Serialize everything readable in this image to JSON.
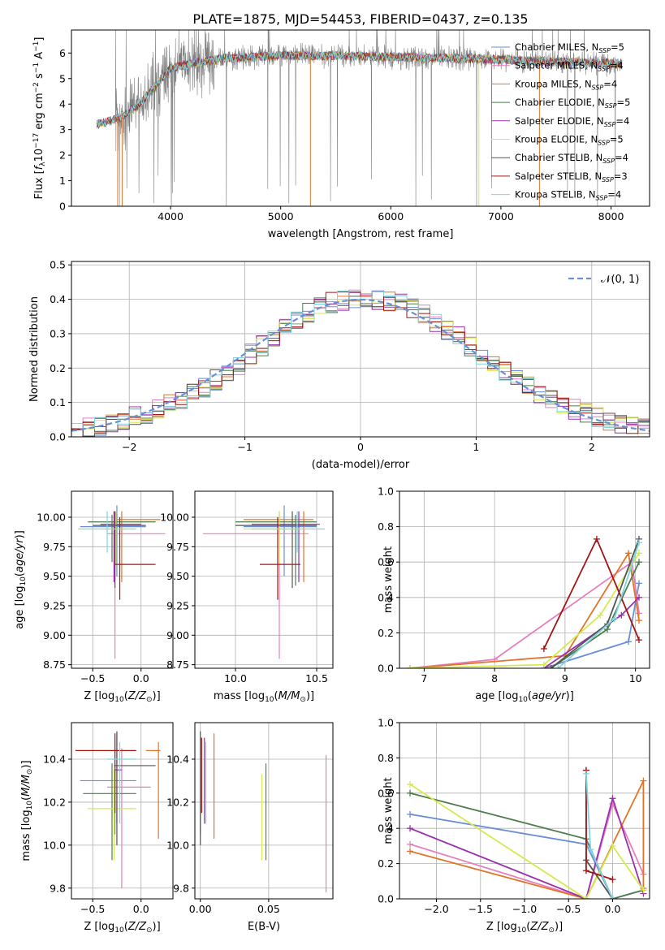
{
  "title": "PLATE=1875, MJD=54453, FIBERID=0437, z=0.135",
  "series_styles": [
    {
      "name": "Chabrier MILES",
      "nssp": "5",
      "color": "#6a8fd6"
    },
    {
      "name": "Salpeter MILES",
      "nssp": "4",
      "color": "#e67fbd"
    },
    {
      "name": "Kroupa MILES",
      "nssp": "4",
      "color": "#e0752a"
    },
    {
      "name": "Chabrier ELODIE",
      "nssp": "5",
      "color": "#4f7d4f"
    },
    {
      "name": "Salpeter ELODIE",
      "nssp": "4",
      "color": "#9b30b0"
    },
    {
      "name": "Kroupa ELODIE",
      "nssp": "5",
      "color": "#d8e850"
    },
    {
      "name": "Chabrier STELIB",
      "nssp": "4",
      "color": "#555555"
    },
    {
      "name": "Salpeter STELIB",
      "nssp": "3",
      "color": "#a31515"
    },
    {
      "name": "Kroupa STELIB",
      "nssp": "4",
      "color": "#7fd6de"
    }
  ],
  "chart_data": [
    {
      "id": "spectrum",
      "type": "line",
      "xlabel": "wavelength [Angstrom, rest frame]",
      "ylabel": "Flux [f_λ10^-17 erg cm^-2 s^-1 A^-1]",
      "xlim": [
        3100,
        8350
      ],
      "ylim": [
        0,
        6.9
      ],
      "xticks": [
        4000,
        5000,
        6000,
        7000,
        8000
      ],
      "yticks": [
        0,
        1,
        2,
        3,
        4,
        5,
        6
      ],
      "grid": false,
      "legend": "top-right",
      "continuum": {
        "x": [
          3330,
          3500,
          3700,
          3900,
          4000,
          4200,
          4500,
          5000,
          5500,
          6000,
          6500,
          7000,
          7500,
          8000,
          8100
        ],
        "y": [
          3.2,
          3.4,
          3.9,
          4.9,
          5.4,
          5.6,
          5.8,
          5.9,
          5.9,
          5.85,
          5.8,
          5.75,
          5.65,
          5.6,
          5.55
        ]
      }
    },
    {
      "id": "hist",
      "type": "bar",
      "xlabel": "(data-model)/error",
      "ylabel": "Normed distribution",
      "xlim": [
        -2.5,
        2.5
      ],
      "ylim": [
        0,
        0.51
      ],
      "xticks": [
        -2,
        -1,
        0,
        1,
        2
      ],
      "yticks": [
        0.0,
        0.1,
        0.2,
        0.3,
        0.4,
        0.5
      ],
      "grid": true,
      "legend": "top-right",
      "legend_label": "𝒩(0, 1)",
      "bin_edges": [
        -2.5,
        -2.4,
        -2.3,
        -2.2,
        -2.1,
        -2.0,
        -1.9,
        -1.8,
        -1.7,
        -1.6,
        -1.5,
        -1.4,
        -1.3,
        -1.2,
        -1.1,
        -1.0,
        -0.9,
        -0.8,
        -0.7,
        -0.6,
        -0.5,
        -0.4,
        -0.3,
        -0.2,
        -0.1,
        0.0,
        0.1,
        0.2,
        0.3,
        0.4,
        0.5,
        0.6,
        0.7,
        0.8,
        0.9,
        1.0,
        1.1,
        1.2,
        1.3,
        1.4,
        1.5,
        1.6,
        1.7,
        1.8,
        1.9,
        2.0,
        2.1,
        2.2,
        2.3,
        2.4,
        2.5
      ],
      "base_counts": [
        0.018,
        0.025,
        0.032,
        0.04,
        0.048,
        0.058,
        0.068,
        0.08,
        0.095,
        0.11,
        0.128,
        0.145,
        0.165,
        0.188,
        0.21,
        0.24,
        0.265,
        0.29,
        0.315,
        0.34,
        0.36,
        0.38,
        0.39,
        0.395,
        0.4,
        0.405,
        0.4,
        0.392,
        0.385,
        0.372,
        0.355,
        0.335,
        0.312,
        0.29,
        0.265,
        0.24,
        0.215,
        0.19,
        0.168,
        0.147,
        0.128,
        0.11,
        0.095,
        0.08,
        0.068,
        0.058,
        0.048,
        0.04,
        0.033,
        0.025
      ]
    },
    {
      "id": "age_z",
      "type": "scatter",
      "xlabel": "Z [log10(Z/Z⊙)]",
      "ylabel": "age  [log10(age/yr)]",
      "xlim": [
        -0.72,
        0.33
      ],
      "ylim": [
        8.72,
        10.22
      ],
      "xticks": [
        -0.5,
        0.0
      ],
      "yticks": [
        8.75,
        9.0,
        9.25,
        9.5,
        9.75,
        10.0
      ],
      "grid": true,
      "points": [
        {
          "s": 0,
          "x": -0.25,
          "xe": [
            -0.63,
            0.05
          ],
          "y": 9.92,
          "ye": [
            9.5,
            10.1
          ]
        },
        {
          "s": 1,
          "x": -0.27,
          "xe": [
            -0.35,
            0.25
          ],
          "y": 9.86,
          "ye": [
            8.8,
            10.05
          ]
        },
        {
          "s": 2,
          "x": -0.2,
          "xe": [
            -0.25,
            0.2
          ],
          "y": 9.98,
          "ye": [
            9.45,
            10.05
          ]
        },
        {
          "s": 3,
          "x": -0.3,
          "xe": [
            -0.55,
            0.15
          ],
          "y": 9.96,
          "ye": [
            9.62,
            10.02
          ]
        },
        {
          "s": 4,
          "x": -0.28,
          "xe": [
            -0.42,
            0.0
          ],
          "y": 9.94,
          "ye": [
            9.45,
            10.05
          ]
        },
        {
          "s": 5,
          "x": -0.26,
          "xe": [
            -0.4,
            -0.15
          ],
          "y": 9.9,
          "ye": [
            9.6,
            10.05
          ]
        },
        {
          "s": 6,
          "x": -0.27,
          "xe": [
            -0.5,
            0.05
          ],
          "y": 9.93,
          "ye": [
            9.4,
            10.05
          ]
        },
        {
          "s": 7,
          "x": -0.22,
          "xe": [
            -0.27,
            0.15
          ],
          "y": 9.6,
          "ye": [
            9.3,
            10.0
          ]
        },
        {
          "s": 8,
          "x": -0.35,
          "xe": [
            -0.65,
            -0.05
          ],
          "y": 9.9,
          "ye": [
            9.7,
            10.05
          ]
        }
      ]
    },
    {
      "id": "age_mass",
      "type": "scatter",
      "xlabel": "mass [log10(M/M⊙)]",
      "ylabel": "",
      "xlim": [
        9.75,
        10.6
      ],
      "ylim": [
        8.72,
        10.22
      ],
      "xticks": [
        10.0,
        10.5
      ],
      "yticks": [
        8.75,
        9.0,
        9.25,
        9.5,
        9.75,
        10.0
      ],
      "grid": true,
      "points": [
        {
          "s": 0,
          "x": 10.3,
          "xe": [
            10.05,
            10.5
          ],
          "y": 9.92,
          "ye": [
            9.5,
            10.1
          ]
        },
        {
          "s": 1,
          "x": 10.27,
          "xe": [
            9.8,
            10.45
          ],
          "y": 9.86,
          "ye": [
            8.8,
            10.05
          ]
        },
        {
          "s": 2,
          "x": 10.42,
          "xe": [
            10.05,
            10.48
          ],
          "y": 9.98,
          "ye": [
            9.45,
            10.05
          ]
        },
        {
          "s": 3,
          "x": 10.37,
          "xe": [
            10.0,
            10.5
          ],
          "y": 9.96,
          "ye": [
            9.42,
            10.02
          ]
        },
        {
          "s": 4,
          "x": 10.39,
          "xe": [
            10.1,
            10.52
          ],
          "y": 9.94,
          "ye": [
            9.45,
            10.05
          ]
        },
        {
          "s": 5,
          "x": 10.27,
          "xe": [
            10.05,
            10.4
          ],
          "y": 9.9,
          "ye": [
            9.6,
            10.05
          ]
        },
        {
          "s": 6,
          "x": 10.35,
          "xe": [
            10.0,
            10.5
          ],
          "y": 9.93,
          "ye": [
            9.4,
            10.05
          ]
        },
        {
          "s": 7,
          "x": 10.26,
          "xe": [
            10.15,
            10.4
          ],
          "y": 9.6,
          "ye": [
            9.3,
            10.0
          ]
        },
        {
          "s": 8,
          "x": 10.38,
          "xe": [
            10.1,
            10.55
          ],
          "y": 9.9,
          "ye": [
            9.7,
            10.05
          ]
        }
      ]
    },
    {
      "id": "weight_age",
      "type": "line",
      "xlabel": "age  [log10(age/yr)]",
      "ylabel": "mass weight",
      "xlim": [
        6.65,
        10.2
      ],
      "ylim": [
        0,
        1.0
      ],
      "xticks": [
        7,
        8,
        9,
        10
      ],
      "yticks": [
        0.0,
        0.2,
        0.4,
        0.6,
        0.8,
        1.0
      ],
      "grid": true,
      "lines": [
        {
          "s": 0,
          "x": [
            8.7,
            9.9,
            10.05
          ],
          "y": [
            0.0,
            0.15,
            0.48
          ]
        },
        {
          "s": 1,
          "x": [
            6.8,
            8.0,
            9.95,
            10.05
          ],
          "y": [
            0.0,
            0.05,
            0.6,
            0.31
          ]
        },
        {
          "s": 2,
          "x": [
            6.8,
            9.0,
            9.9,
            10.05
          ],
          "y": [
            0.0,
            0.07,
            0.65,
            0.27
          ]
        },
        {
          "s": 3,
          "x": [
            8.8,
            9.6,
            10.05
          ],
          "y": [
            0.0,
            0.22,
            0.6
          ]
        },
        {
          "s": 4,
          "x": [
            8.7,
            9.8,
            10.05
          ],
          "y": [
            0.0,
            0.3,
            0.4
          ]
        },
        {
          "s": 5,
          "x": [
            6.8,
            8.7,
            9.5,
            10.05
          ],
          "y": [
            0.0,
            0.02,
            0.3,
            0.65
          ]
        },
        {
          "s": 6,
          "x": [
            8.8,
            9.6,
            10.05
          ],
          "y": [
            0.0,
            0.25,
            0.73
          ]
        },
        {
          "s": 7,
          "x": [
            8.7,
            9.45,
            10.05
          ],
          "y": [
            0.11,
            0.73,
            0.16
          ]
        },
        {
          "s": 8,
          "x": [
            8.9,
            9.7,
            10.05
          ],
          "y": [
            0.0,
            0.28,
            0.71
          ]
        }
      ]
    },
    {
      "id": "mass_z",
      "type": "scatter",
      "xlabel": "Z [log10(Z/Z⊙)]",
      "ylabel": "mass [log10(M/M⊙)]",
      "xlim": [
        -0.72,
        0.33
      ],
      "ylim": [
        9.75,
        10.57
      ],
      "xticks": [
        -0.5,
        0.0
      ],
      "yticks": [
        9.8,
        10.0,
        10.2,
        10.4
      ],
      "grid": true,
      "points": [
        {
          "s": 0,
          "x": -0.27,
          "xe": [
            -0.63,
            -0.05
          ],
          "y": 10.3,
          "ye": [
            10.05,
            10.5
          ]
        },
        {
          "s": 1,
          "x": -0.2,
          "xe": [
            -0.35,
            0.1
          ],
          "y": 10.27,
          "ye": [
            9.8,
            10.45
          ]
        },
        {
          "s": 2,
          "x": 0.18,
          "xe": [
            0.05,
            0.2
          ],
          "y": 10.44,
          "ye": [
            10.03,
            10.48
          ]
        },
        {
          "s": 3,
          "x": -0.3,
          "xe": [
            -0.6,
            -0.05
          ],
          "y": 10.24,
          "ye": [
            9.93,
            10.38
          ]
        },
        {
          "s": 4,
          "x": -0.25,
          "xe": [
            -0.28,
            -0.2
          ],
          "y": 10.35,
          "ye": [
            10.1,
            10.52
          ]
        },
        {
          "s": 5,
          "x": -0.28,
          "xe": [
            -0.55,
            -0.05
          ],
          "y": 10.17,
          "ye": [
            9.93,
            10.35
          ]
        },
        {
          "s": 6,
          "x": -0.25,
          "xe": [
            -0.28,
            0.15
          ],
          "y": 10.37,
          "ye": [
            10.0,
            10.53
          ]
        },
        {
          "s": 7,
          "x": -0.27,
          "xe": [
            -0.68,
            -0.05
          ],
          "y": 10.44,
          "ye": [
            10.15,
            10.52
          ]
        },
        {
          "s": 8,
          "x": -0.22,
          "xe": [
            -0.35,
            -0.05
          ],
          "y": 10.4,
          "ye": [
            10.1,
            10.48
          ]
        }
      ]
    },
    {
      "id": "mass_ebv",
      "type": "scatter",
      "xlabel": "E(B-V)",
      "ylabel": "",
      "xlim": [
        -0.004,
        0.097
      ],
      "ylim": [
        9.75,
        10.57
      ],
      "xticks": [
        0.0,
        0.05
      ],
      "yticks": [
        9.8,
        10.0,
        10.2,
        10.4
      ],
      "grid": true,
      "points": [
        {
          "s": 0,
          "x": 0.0,
          "y": 10.3,
          "ye": [
            10.05,
            10.5
          ]
        },
        {
          "s": 1,
          "x": 0.092,
          "y": 10.27,
          "ye": [
            9.78,
            10.42
          ]
        },
        {
          "s": 2,
          "x": 0.01,
          "y": 10.44,
          "ye": [
            10.03,
            10.52
          ]
        },
        {
          "s": 3,
          "x": 0.048,
          "y": 10.24,
          "ye": [
            9.93,
            10.38
          ]
        },
        {
          "s": 4,
          "x": 0.003,
          "y": 10.35,
          "ye": [
            10.1,
            10.5
          ]
        },
        {
          "s": 5,
          "x": 0.045,
          "y": 10.17,
          "ye": [
            9.93,
            10.33
          ]
        },
        {
          "s": 6,
          "x": 0.0,
          "y": 10.37,
          "ye": [
            10.0,
            10.53
          ]
        },
        {
          "s": 7,
          "x": 0.001,
          "y": 10.44,
          "ye": [
            10.15,
            10.5
          ]
        },
        {
          "s": 8,
          "x": 0.004,
          "y": 10.4,
          "ye": [
            10.1,
            10.48
          ]
        }
      ]
    },
    {
      "id": "weight_z",
      "type": "line",
      "xlabel": "Z [log10(Z/Z⊙)]",
      "ylabel": "mass weight",
      "xlim": [
        -2.42,
        0.42
      ],
      "ylim": [
        0,
        1.0
      ],
      "xticks": [
        -2.0,
        -1.5,
        -1.0,
        -0.5,
        0.0
      ],
      "yticks": [
        0.0,
        0.2,
        0.4,
        0.6,
        0.8,
        1.0
      ],
      "grid": true,
      "lines": [
        {
          "s": 0,
          "x": [
            -2.3,
            -0.3,
            0.0,
            0.35
          ],
          "y": [
            0.48,
            0.31,
            0.0,
            0.05
          ]
        },
        {
          "s": 1,
          "x": [
            -2.3,
            -0.3,
            0.0,
            0.35
          ],
          "y": [
            0.31,
            0.0,
            0.54,
            0.14
          ]
        },
        {
          "s": 2,
          "x": [
            -2.3,
            -0.3,
            0.35,
            0.35
          ],
          "y": [
            0.27,
            0.0,
            0.67,
            0.06
          ]
        },
        {
          "s": 3,
          "x": [
            -2.3,
            -0.3,
            0.0,
            0.35
          ],
          "y": [
            0.6,
            0.34,
            0.0,
            0.05
          ]
        },
        {
          "s": 4,
          "x": [
            -2.3,
            -0.3,
            0.0,
            0.35
          ],
          "y": [
            0.4,
            0.0,
            0.57,
            0.03
          ]
        },
        {
          "s": 5,
          "x": [
            -2.3,
            -0.3,
            0.0,
            0.35
          ],
          "y": [
            0.65,
            0.0,
            0.3,
            0.05
          ]
        },
        {
          "s": 6,
          "x": [
            -0.3,
            -0.3,
            0.0
          ],
          "y": [
            0.73,
            0.22,
            0.0
          ]
        },
        {
          "s": 7,
          "x": [
            -0.3,
            -0.3,
            0.0
          ],
          "y": [
            0.73,
            0.16,
            0.11
          ]
        },
        {
          "s": 8,
          "x": [
            -0.3,
            -0.25,
            0.0
          ],
          "y": [
            0.71,
            0.28,
            0.0
          ]
        }
      ]
    }
  ]
}
